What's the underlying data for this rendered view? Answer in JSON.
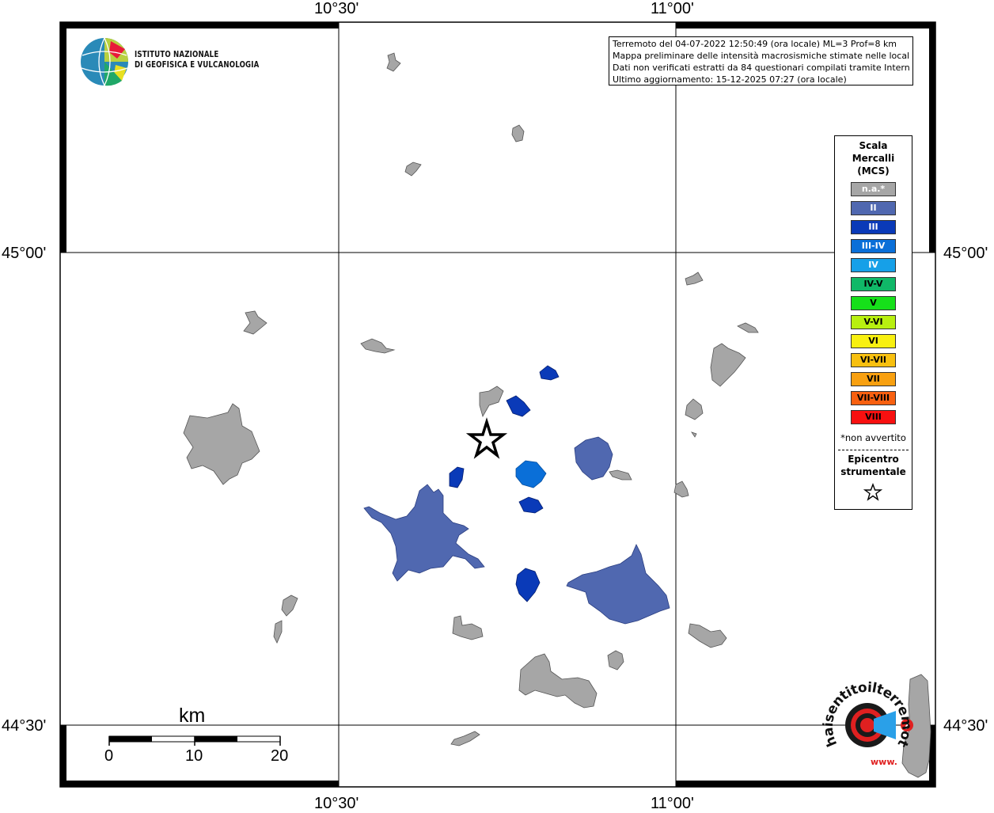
{
  "info": {
    "line1": "Terremoto del 04-07-2022 12:50:49 (ora locale) ML=3 Prof=8 km",
    "line2": "Mappa preliminare delle intensità macrosismiche stimate nelle località",
    "line3": "Dati non verificati estratti da 84 questionari compilati tramite Internet.",
    "line4": "Ultimo aggiornamento: 15-12-2025 07:27 (ora locale)"
  },
  "logo": {
    "line1": "ISTITUTO NAZIONALE",
    "line2": "DI GEOFISICA E VULCANOLOGIA"
  },
  "coordinates": {
    "top_left": "10°30'",
    "top_right": "11°00'",
    "bottom_left": "10°30'",
    "bottom_right": "11°00'",
    "left_upper": "45°00'",
    "left_lower": "44°30'",
    "right_upper": "45°00'",
    "right_lower": "44°30'"
  },
  "legend": {
    "title_line1": "Scala",
    "title_line2": "Mercalli",
    "title_line3": "(MCS)",
    "items": [
      {
        "label": "n.a.*",
        "color": "#a6a6a6",
        "text_color": "#ffffff"
      },
      {
        "label": "II",
        "color": "#5068b0",
        "text_color": "#ffffff"
      },
      {
        "label": "III",
        "color": "#0a3ab8",
        "text_color": "#ffffff"
      },
      {
        "label": "III-IV",
        "color": "#0a6fd8",
        "text_color": "#ffffff"
      },
      {
        "label": "IV",
        "color": "#16a0e8",
        "text_color": "#ffffff"
      },
      {
        "label": "IV-V",
        "color": "#10b868",
        "text_color": "#000000"
      },
      {
        "label": "V",
        "color": "#16e01a",
        "text_color": "#000000"
      },
      {
        "label": "V-VI",
        "color": "#b8f010",
        "text_color": "#000000"
      },
      {
        "label": "VI",
        "color": "#f8f010",
        "text_color": "#000000"
      },
      {
        "label": "VI-VII",
        "color": "#f8c010",
        "text_color": "#000000"
      },
      {
        "label": "VII",
        "color": "#f8a010",
        "text_color": "#000000"
      },
      {
        "label": "VII-VIII",
        "color": "#f86010",
        "text_color": "#000000"
      },
      {
        "label": "VIII",
        "color": "#f81010",
        "text_color": "#000000"
      }
    ],
    "note": "*non avvertito",
    "epicentre_line1": "Epicentro",
    "epicentre_line2": "strumentale"
  },
  "scale_bar": {
    "title": "km",
    "labels": [
      "0",
      "10",
      "20"
    ]
  },
  "badge": {
    "text": "haisentitoilterremoto.it",
    "url": "www."
  }
}
